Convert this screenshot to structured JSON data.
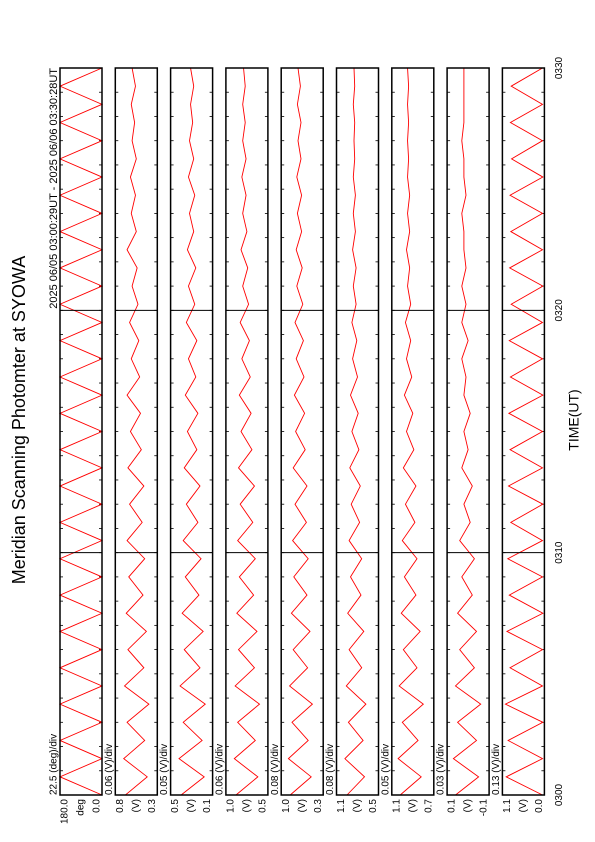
{
  "chart_data": {
    "type": "line",
    "title": "Meridian Scanning Photomter at SYOWA",
    "subtitle": "2025 06/05 03:00:29UT - 2025 06/06 03:30:28UT",
    "xlabel": "TIME(UT)",
    "color": "#ff0000",
    "xlim": [
      0,
      30
    ],
    "xticks": [
      {
        "value": 0,
        "label": "0300"
      },
      {
        "value": 10,
        "label": "0310"
      },
      {
        "value": 20,
        "label": "0320"
      },
      {
        "value": 30,
        "label": "0330"
      }
    ],
    "x": [
      0,
      0.75,
      1.5,
      2.25,
      3,
      3.75,
      4.5,
      5.25,
      6,
      6.75,
      7.5,
      8.25,
      9,
      9.75,
      10.5,
      11.25,
      12,
      12.75,
      13.5,
      14.25,
      15,
      15.75,
      16.5,
      17.25,
      18,
      18.75,
      19.5,
      20.25,
      21,
      21.75,
      22.5,
      23.25,
      24,
      24.75,
      25.5,
      26.25,
      27,
      27.75,
      28.5,
      29.25,
      30
    ],
    "panels": [
      {
        "scale": "22.5 (deg)/div",
        "unit": "deg",
        "ylim": [
          0,
          180
        ],
        "yticks": [
          {
            "value": 0,
            "label": "0.0"
          },
          {
            "value": 180,
            "label": "180.0"
          }
        ],
        "values": [
          0,
          180,
          0,
          180,
          0,
          180,
          0,
          180,
          0,
          180,
          0,
          180,
          0,
          180,
          0,
          180,
          0,
          180,
          0,
          180,
          0,
          180,
          0,
          180,
          0,
          180,
          0,
          180,
          0,
          180,
          0,
          180,
          0,
          180,
          0,
          180,
          0,
          180,
          0,
          180,
          0
        ]
      },
      {
        "scale": "0.06 (V)/div",
        "unit": "(V)",
        "ylim": [
          0.3,
          0.8
        ],
        "yticks": [
          0.3,
          0.8
        ],
        "values": [
          0.68,
          0.42,
          0.7,
          0.45,
          0.66,
          0.4,
          0.69,
          0.46,
          0.65,
          0.43,
          0.67,
          0.47,
          0.64,
          0.45,
          0.66,
          0.48,
          0.63,
          0.46,
          0.65,
          0.49,
          0.62,
          0.5,
          0.66,
          0.51,
          0.61,
          0.52,
          0.63,
          0.53,
          0.6,
          0.54,
          0.66,
          0.55,
          0.61,
          0.56,
          0.62,
          0.55,
          0.6,
          0.57,
          0.61,
          0.56,
          0.6
        ]
      },
      {
        "scale": "0.05 (V)/div",
        "unit": "(V)",
        "ylim": [
          0.1,
          0.5
        ],
        "yticks": [
          0.1,
          0.5
        ],
        "values": [
          0.4,
          0.18,
          0.42,
          0.2,
          0.38,
          0.17,
          0.41,
          0.22,
          0.37,
          0.19,
          0.39,
          0.23,
          0.36,
          0.21,
          0.38,
          0.24,
          0.35,
          0.22,
          0.37,
          0.25,
          0.34,
          0.24,
          0.36,
          0.26,
          0.33,
          0.25,
          0.35,
          0.27,
          0.33,
          0.26,
          0.34,
          0.28,
          0.32,
          0.27,
          0.33,
          0.28,
          0.32,
          0.29,
          0.31,
          0.28,
          0.31
        ]
      },
      {
        "scale": "0.06 (V)/div",
        "unit": "(V)",
        "ylim": [
          0.5,
          1.0
        ],
        "yticks": [
          0.5,
          {
            "value": 1.0,
            "label": "1.0"
          }
        ],
        "values": [
          0.88,
          0.62,
          0.9,
          0.65,
          0.86,
          0.6,
          0.89,
          0.66,
          0.85,
          0.63,
          0.87,
          0.67,
          0.84,
          0.65,
          0.86,
          0.68,
          0.83,
          0.66,
          0.85,
          0.69,
          0.82,
          0.7,
          0.84,
          0.71,
          0.81,
          0.72,
          0.83,
          0.73,
          0.8,
          0.74,
          0.82,
          0.75,
          0.8,
          0.76,
          0.81,
          0.76,
          0.8,
          0.77,
          0.8,
          0.77,
          0.79
        ]
      },
      {
        "scale": "0.08 (V)/div",
        "unit": "(V)",
        "ylim": [
          0.3,
          1.0
        ],
        "yticks": [
          0.3,
          {
            "value": 1.0,
            "label": "1.0"
          }
        ],
        "values": [
          0.85,
          0.5,
          0.88,
          0.55,
          0.82,
          0.48,
          0.86,
          0.56,
          0.8,
          0.52,
          0.83,
          0.57,
          0.79,
          0.55,
          0.81,
          0.58,
          0.77,
          0.57,
          0.8,
          0.6,
          0.76,
          0.61,
          0.78,
          0.62,
          0.75,
          0.63,
          0.77,
          0.64,
          0.74,
          0.65,
          0.75,
          0.66,
          0.73,
          0.66,
          0.74,
          0.67,
          0.72,
          0.67,
          0.73,
          0.68,
          0.72
        ]
      },
      {
        "scale": "0.08 (V)/div",
        "unit": "(V)",
        "ylim": [
          0.5,
          1.1
        ],
        "yticks": [
          0.5,
          1.1
        ],
        "values": [
          0.95,
          0.7,
          0.98,
          0.72,
          0.93,
          0.68,
          0.96,
          0.74,
          0.92,
          0.71,
          0.94,
          0.75,
          0.9,
          0.74,
          0.92,
          0.77,
          0.89,
          0.76,
          0.91,
          0.78,
          0.88,
          0.79,
          0.9,
          0.8,
          0.87,
          0.81,
          0.88,
          0.82,
          0.86,
          0.82,
          0.87,
          0.83,
          0.86,
          0.83,
          0.86,
          0.84,
          0.85,
          0.84,
          0.86,
          0.84,
          0.85
        ]
      },
      {
        "scale": "0.05 (V)/div",
        "unit": "(V)",
        "ylim": [
          0.7,
          1.1
        ],
        "yticks": [
          0.7,
          1.1
        ],
        "values": [
          1.02,
          0.82,
          1.04,
          0.85,
          1.0,
          0.8,
          1.03,
          0.86,
          0.99,
          0.83,
          1.01,
          0.87,
          0.98,
          0.86,
          1.0,
          0.88,
          0.97,
          0.87,
          0.99,
          0.89,
          0.96,
          0.9,
          0.98,
          0.91,
          0.96,
          0.92,
          0.97,
          0.92,
          0.95,
          0.93,
          0.96,
          0.93,
          0.95,
          0.93,
          0.95,
          0.94,
          0.95,
          0.94,
          0.95,
          0.94,
          0.95
        ]
      },
      {
        "scale": "0.03 (V)/div",
        "unit": "(V)",
        "ylim": [
          -0.1,
          0.1
        ],
        "yticks": [
          -0.1,
          0.1
        ],
        "values": [
          0.06,
          -0.05,
          0.07,
          -0.04,
          0.05,
          -0.06,
          0.06,
          -0.03,
          0.04,
          -0.04,
          0.05,
          -0.02,
          0.03,
          -0.03,
          0.04,
          -0.01,
          0.02,
          -0.02,
          0.03,
          0.0,
          0.02,
          -0.01,
          0.02,
          0.01,
          0.03,
          0.0,
          0.03,
          0.01,
          0.03,
          0.01,
          0.02,
          0.02,
          0.03,
          0.01,
          0.02,
          0.02,
          0.03,
          0.02,
          0.02,
          0.02,
          0.02
        ]
      },
      {
        "scale": "0.13 (V)/div",
        "unit": "(V)",
        "ylim": [
          0.0,
          1.1
        ],
        "yticks": [
          {
            "value": 0,
            "label": "0.0"
          },
          1.1
        ],
        "values": [
          0.05,
          1.0,
          0.05,
          0.95,
          0.04,
          1.02,
          0.05,
          0.9,
          0.05,
          0.98,
          0.04,
          0.92,
          0.05,
          0.96,
          0.05,
          0.88,
          0.04,
          0.94,
          0.05,
          0.9,
          0.05,
          0.93,
          0.04,
          0.89,
          0.05,
          0.92,
          0.05,
          0.87,
          0.04,
          0.91,
          0.05,
          0.88,
          0.05,
          0.9,
          0.04,
          0.86,
          0.05,
          0.89,
          0.05,
          0.87,
          0.05
        ]
      }
    ]
  }
}
